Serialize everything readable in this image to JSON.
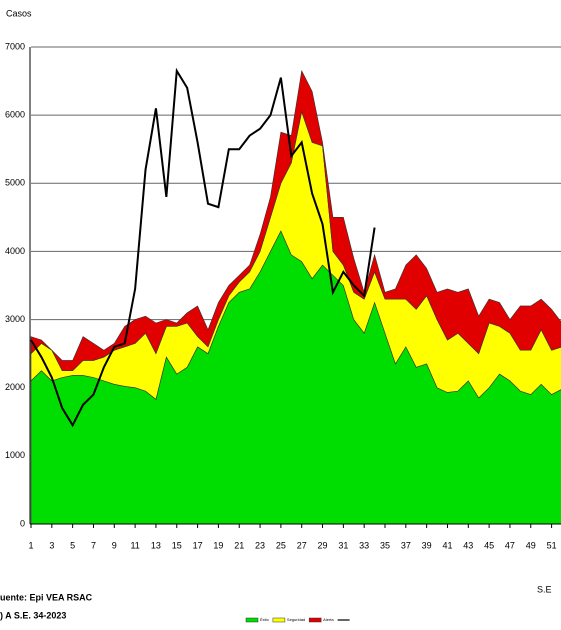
{
  "chart_data": {
    "type": "stacked-area-line",
    "y_label": "Casos",
    "x_label": "S.E",
    "x": [
      1,
      2,
      3,
      4,
      5,
      6,
      7,
      8,
      9,
      10,
      11,
      12,
      13,
      14,
      15,
      16,
      17,
      18,
      19,
      20,
      21,
      22,
      23,
      24,
      25,
      26,
      27,
      28,
      29,
      30,
      31,
      32,
      33,
      34,
      35,
      36,
      37,
      38,
      39,
      40,
      41,
      42,
      43,
      44,
      45,
      46,
      47,
      48,
      49,
      50,
      51,
      52
    ],
    "xlim": [
      1,
      52
    ],
    "xticks": [
      1,
      3,
      5,
      7,
      9,
      11,
      13,
      15,
      17,
      19,
      21,
      23,
      25,
      27,
      29,
      31,
      33,
      35,
      37,
      39,
      41,
      43,
      45,
      47,
      49,
      51
    ],
    "ylim": [
      0,
      7000
    ],
    "yticks": [
      0,
      1000,
      2000,
      3000,
      4000,
      5000,
      6000,
      7000
    ],
    "grid": true,
    "series": [
      {
        "name": "Éxito",
        "color": "#00dd00",
        "kind": "area",
        "values": [
          2100,
          2250,
          2100,
          2150,
          2180,
          2180,
          2150,
          2100,
          2050,
          2020,
          2000,
          1950,
          1830,
          2450,
          2200,
          2300,
          2600,
          2500,
          2900,
          3250,
          3400,
          3450,
          3700,
          4000,
          4300,
          3950,
          3850,
          3600,
          3800,
          3650,
          3500,
          3000,
          2800,
          3250,
          2800,
          2350,
          2600,
          2300,
          2350,
          2000,
          1930,
          1950,
          2100,
          1850,
          2000,
          2200,
          2100,
          1950,
          1900,
          2050,
          1900,
          1980
        ]
      },
      {
        "name": "Seguridad",
        "color": "#ffff00",
        "kind": "area",
        "values": [
          400,
          400,
          450,
          100,
          70,
          220,
          250,
          350,
          500,
          580,
          650,
          850,
          670,
          450,
          700,
          650,
          150,
          100,
          100,
          100,
          150,
          250,
          300,
          500,
          700,
          1350,
          2200,
          2000,
          1750,
          350,
          300,
          400,
          500,
          450,
          500,
          950,
          700,
          850,
          1000,
          1000,
          770,
          850,
          550,
          650,
          950,
          700,
          700,
          600,
          650,
          800,
          650,
          620
        ]
      },
      {
        "name": "Alerta",
        "color": "#e00000",
        "kind": "area",
        "values": [
          250,
          50,
          0,
          150,
          150,
          350,
          250,
          100,
          100,
          300,
          350,
          250,
          450,
          100,
          50,
          150,
          450,
          250,
          250,
          150,
          100,
          100,
          250,
          300,
          750,
          400,
          600,
          750,
          50,
          500,
          700,
          500,
          100,
          250,
          100,
          150,
          500,
          800,
          400,
          400,
          750,
          600,
          800,
          550,
          350,
          350,
          200,
          650,
          650,
          450,
          600,
          350
        ]
      },
      {
        "color": "#000000",
        "kind": "line",
        "values": [
          2700,
          2450,
          2150,
          1700,
          1450,
          1750,
          1900,
          2300,
          2600,
          2650,
          3450,
          5200,
          6100,
          4800,
          6650,
          6400,
          5600,
          4700,
          4650,
          5500,
          5500,
          5700,
          5800,
          6000,
          6550,
          5400,
          5600,
          4850,
          4400,
          3400,
          3700,
          3500,
          3350,
          4350,
          null,
          null,
          null,
          null,
          null,
          null,
          null,
          null,
          null,
          null,
          null,
          null,
          null,
          null,
          null,
          null,
          null,
          null
        ]
      }
    ],
    "source": "uente: Epi VEA RSAC",
    "note": ") A S.E. 34-2023"
  }
}
